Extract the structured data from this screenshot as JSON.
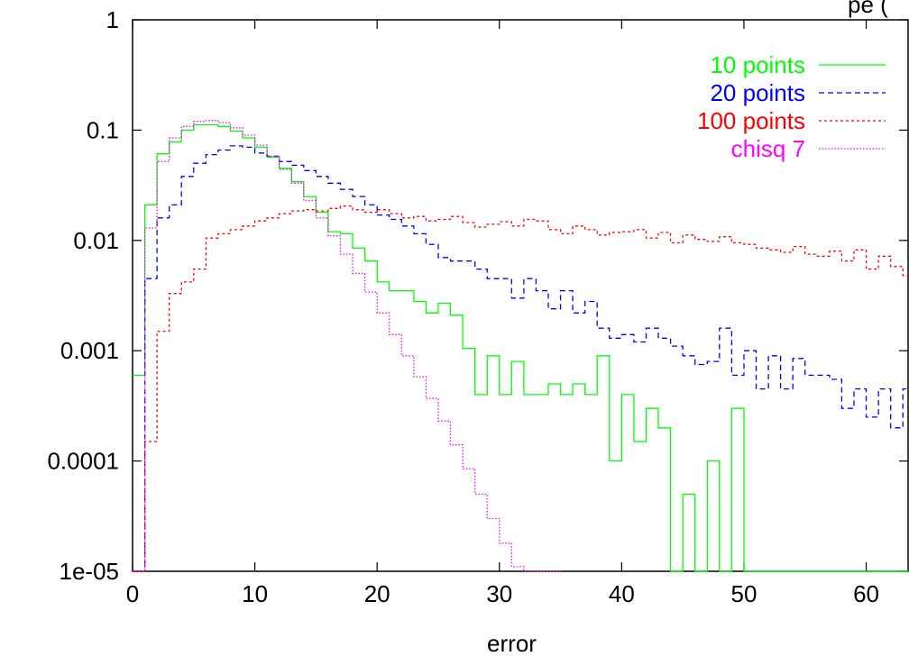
{
  "chart_data": {
    "type": "line",
    "title": "",
    "title_fragment": "pe (",
    "xlabel": "error",
    "ylabel": "",
    "xlim": [
      0,
      63.5
    ],
    "ylim": [
      1e-05,
      1
    ],
    "yscale": "log",
    "grid": false,
    "legend_placement": "top-right",
    "x_ticks": [
      0,
      10,
      20,
      30,
      40,
      50,
      60
    ],
    "x_tick_labels": [
      "0",
      "10",
      "20",
      "30",
      "40",
      "50",
      "60"
    ],
    "y_ticks": [
      1,
      0.1,
      0.01,
      0.001,
      0.0001,
      1e-05
    ],
    "y_tick_labels": [
      "1",
      "0.1",
      "0.01",
      "0.001",
      "0.0001",
      "1e-05"
    ],
    "step_style": "histogram",
    "series": [
      {
        "name": "10 points",
        "color": "#00ff00",
        "dash": "solid",
        "x": [
          0,
          1,
          2,
          3,
          4,
          5,
          6,
          7,
          8,
          9,
          10,
          11,
          12,
          13,
          14,
          15,
          16,
          17,
          18,
          19,
          20,
          21,
          22,
          23,
          24,
          25,
          26,
          27,
          28,
          29,
          30,
          31,
          32,
          33,
          34,
          35,
          36,
          37,
          38,
          39,
          40,
          41,
          42,
          43,
          44,
          45,
          46,
          47,
          48,
          49,
          50,
          51,
          52,
          53,
          54,
          55,
          56,
          57,
          58,
          59,
          60,
          61,
          62,
          63
        ],
        "values": [
          0.0006,
          0.021,
          0.061,
          0.078,
          0.1,
          0.112,
          0.112,
          0.108,
          0.098,
          0.085,
          0.07,
          0.057,
          0.045,
          0.034,
          0.025,
          0.018,
          0.012,
          0.0115,
          0.0085,
          0.0065,
          0.0042,
          0.0035,
          0.0035,
          0.0028,
          0.0022,
          0.0027,
          0.0021,
          0.00105,
          0.0004,
          0.0009,
          0.0004,
          0.0008,
          0.0004,
          0.0004,
          0.0005,
          0.0004,
          0.0005,
          0.0004,
          0.0009,
          0.0001,
          0.0004,
          0.00015,
          0.0003,
          0.0002,
          1e-05,
          5e-05,
          1e-05,
          0.0001,
          1e-05,
          0.0003,
          1e-05,
          1e-05,
          1e-05,
          1e-05,
          1e-05,
          1e-05,
          1e-05,
          1e-05,
          1e-05,
          1e-05,
          1e-05,
          1e-05,
          1e-05,
          1e-05
        ]
      },
      {
        "name": "20 points",
        "color": "#0000ff",
        "dash": "6,4",
        "x": [
          0,
          1,
          2,
          3,
          4,
          5,
          6,
          7,
          8,
          9,
          10,
          11,
          12,
          13,
          14,
          15,
          16,
          17,
          18,
          19,
          20,
          21,
          22,
          23,
          24,
          25,
          26,
          27,
          28,
          29,
          30,
          31,
          32,
          33,
          34,
          35,
          36,
          37,
          38,
          39,
          40,
          41,
          42,
          43,
          44,
          45,
          46,
          47,
          48,
          49,
          50,
          51,
          52,
          53,
          54,
          55,
          56,
          57,
          58,
          59,
          60,
          61,
          62,
          63
        ],
        "values": [
          1e-05,
          0.0045,
          0.016,
          0.021,
          0.038,
          0.05,
          0.06,
          0.066,
          0.072,
          0.07,
          0.062,
          0.058,
          0.052,
          0.048,
          0.043,
          0.038,
          0.033,
          0.029,
          0.025,
          0.021,
          0.017,
          0.0155,
          0.0135,
          0.0115,
          0.0092,
          0.007,
          0.0065,
          0.0065,
          0.0055,
          0.0045,
          0.0045,
          0.003,
          0.0045,
          0.0035,
          0.0024,
          0.0035,
          0.0022,
          0.0028,
          0.0016,
          0.0013,
          0.0014,
          0.0012,
          0.0016,
          0.0013,
          0.0011,
          0.0009,
          0.00075,
          0.0008,
          0.0016,
          0.0006,
          0.001,
          0.00045,
          0.0009,
          0.00045,
          0.00085,
          0.0006,
          0.0006,
          0.00055,
          0.0003,
          0.00045,
          0.00025,
          0.00045,
          0.0002,
          0.00045
        ]
      },
      {
        "name": "100 points",
        "color": "#ff0000",
        "dash": "3,3",
        "x": [
          0,
          1,
          2,
          3,
          4,
          5,
          6,
          7,
          8,
          9,
          10,
          11,
          12,
          13,
          14,
          15,
          16,
          17,
          18,
          19,
          20,
          21,
          22,
          23,
          24,
          25,
          26,
          27,
          28,
          29,
          30,
          31,
          32,
          33,
          34,
          35,
          36,
          37,
          38,
          39,
          40,
          41,
          42,
          43,
          44,
          45,
          46,
          47,
          48,
          49,
          50,
          51,
          52,
          53,
          54,
          55,
          56,
          57,
          58,
          59,
          60,
          61,
          62,
          63
        ],
        "values": [
          1e-05,
          0.00015,
          0.0015,
          0.0033,
          0.0042,
          0.0055,
          0.0105,
          0.0115,
          0.0125,
          0.0135,
          0.015,
          0.016,
          0.0175,
          0.0185,
          0.019,
          0.0185,
          0.0195,
          0.0205,
          0.019,
          0.018,
          0.019,
          0.0175,
          0.016,
          0.0165,
          0.015,
          0.0155,
          0.0165,
          0.0145,
          0.0132,
          0.014,
          0.0148,
          0.0135,
          0.0155,
          0.015,
          0.0125,
          0.0115,
          0.0135,
          0.0125,
          0.0112,
          0.0118,
          0.012,
          0.0125,
          0.0105,
          0.0118,
          0.0095,
          0.0112,
          0.0102,
          0.0098,
          0.0108,
          0.0095,
          0.0092,
          0.0085,
          0.0082,
          0.0078,
          0.0088,
          0.0075,
          0.0072,
          0.008,
          0.0065,
          0.0082,
          0.0055,
          0.0072,
          0.0058,
          0.0048
        ]
      },
      {
        "name": "chisq 7",
        "color": "#ff00ff",
        "dash": "1.5,2",
        "x": [
          0,
          1,
          2,
          3,
          4,
          5,
          6,
          7,
          8,
          9,
          10,
          11,
          12,
          13,
          14,
          15,
          16,
          17,
          18,
          19,
          20,
          21,
          22,
          23,
          24,
          25,
          26,
          27,
          28,
          29,
          30,
          31,
          32,
          33,
          34
        ],
        "values": [
          1e-05,
          0.013,
          0.052,
          0.085,
          0.108,
          0.12,
          0.122,
          0.117,
          0.105,
          0.09,
          0.073,
          0.058,
          0.044,
          0.033,
          0.023,
          0.016,
          0.011,
          0.0075,
          0.005,
          0.0034,
          0.0022,
          0.0014,
          0.0009,
          0.00058,
          0.00037,
          0.00023,
          0.00014,
          8.5e-05,
          5e-05,
          3e-05,
          1.8e-05,
          1.1e-05,
          1e-05,
          1e-05,
          1e-05
        ]
      }
    ]
  }
}
